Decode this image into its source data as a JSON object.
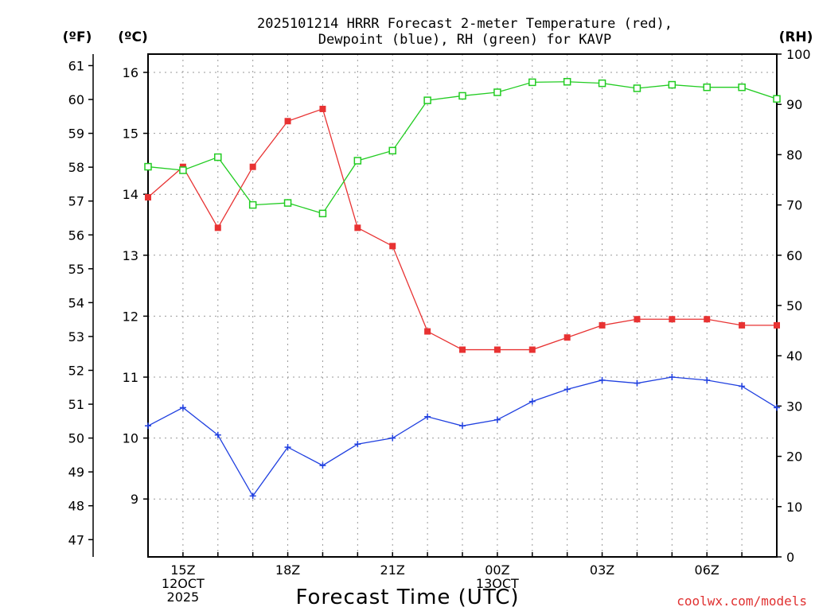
{
  "title_lines": [
    "2025101214 HRRR Forecast 2-meter Temperature (red),",
    "Dewpoint (blue), RH (green) for KAVP"
  ],
  "unit_labels": {
    "left_f": "(ºF)",
    "left_c": "(ºC)",
    "right_rh": "(RH)"
  },
  "credit": "coolwx.com/models",
  "colors": {
    "temperature": "#e83232",
    "dewpoint": "#2040e0",
    "rh": "#22cc22"
  },
  "chart_data": {
    "type": "line",
    "title": "2025101214 HRRR Forecast 2-meter Temperature (red), Dewpoint (blue), RH (green) for KAVP",
    "xlabel": "Forecast Time (UTC)",
    "x": [
      0,
      1,
      2,
      3,
      4,
      5,
      6,
      7,
      8,
      9,
      10,
      11,
      12,
      13,
      14,
      15,
      16,
      17,
      18
    ],
    "x_range": [
      0,
      18
    ],
    "x_ticks": [
      {
        "x": 1,
        "lines": [
          "15Z",
          "12OCT",
          "2025"
        ]
      },
      {
        "x": 4,
        "lines": [
          "18Z"
        ]
      },
      {
        "x": 7,
        "lines": [
          "21Z"
        ]
      },
      {
        "x": 10,
        "lines": [
          "00Z",
          "13OCT"
        ]
      },
      {
        "x": 13,
        "lines": [
          "03Z"
        ]
      },
      {
        "x": 16,
        "lines": [
          "06Z"
        ]
      }
    ],
    "celsius_axis": {
      "label": "(ºC)",
      "range": [
        8.05,
        16.3
      ],
      "ticks": [
        9,
        10,
        11,
        12,
        13,
        14,
        15,
        16
      ]
    },
    "fahrenheit_axis": {
      "label": "(ºF)",
      "ticks": [
        47,
        48,
        49,
        50,
        51,
        52,
        53,
        54,
        55,
        56,
        57,
        58,
        59,
        60,
        61
      ]
    },
    "rh_axis": {
      "label": "(RH)",
      "range": [
        0,
        100
      ],
      "ticks": [
        0,
        10,
        20,
        30,
        40,
        50,
        60,
        70,
        80,
        90,
        100
      ]
    },
    "grid": true,
    "series": [
      {
        "name": "Temperature",
        "axis": "celsius",
        "color": "#e83232",
        "marker": "filled-square",
        "values": [
          13.95,
          14.45,
          13.45,
          14.45,
          15.2,
          15.4,
          13.45,
          13.15,
          11.75,
          11.45,
          11.45,
          11.45,
          11.65,
          11.85,
          11.95,
          11.95,
          11.95,
          11.85,
          11.85
        ]
      },
      {
        "name": "Dewpoint",
        "axis": "celsius",
        "color": "#2040e0",
        "marker": "plus",
        "values": [
          10.2,
          10.5,
          10.05,
          9.05,
          9.85,
          9.55,
          9.9,
          10.0,
          10.35,
          10.2,
          10.3,
          10.6,
          10.8,
          10.95,
          10.9,
          11.0,
          10.95,
          10.85,
          10.5
        ]
      },
      {
        "name": "RH",
        "axis": "rh",
        "color": "#22cc22",
        "marker": "open-square",
        "values": [
          77.6,
          76.9,
          79.5,
          70.0,
          70.4,
          68.3,
          78.8,
          80.8,
          90.8,
          91.7,
          92.4,
          94.4,
          94.5,
          94.2,
          93.2,
          93.9,
          93.4,
          93.4,
          91.1
        ]
      }
    ]
  }
}
